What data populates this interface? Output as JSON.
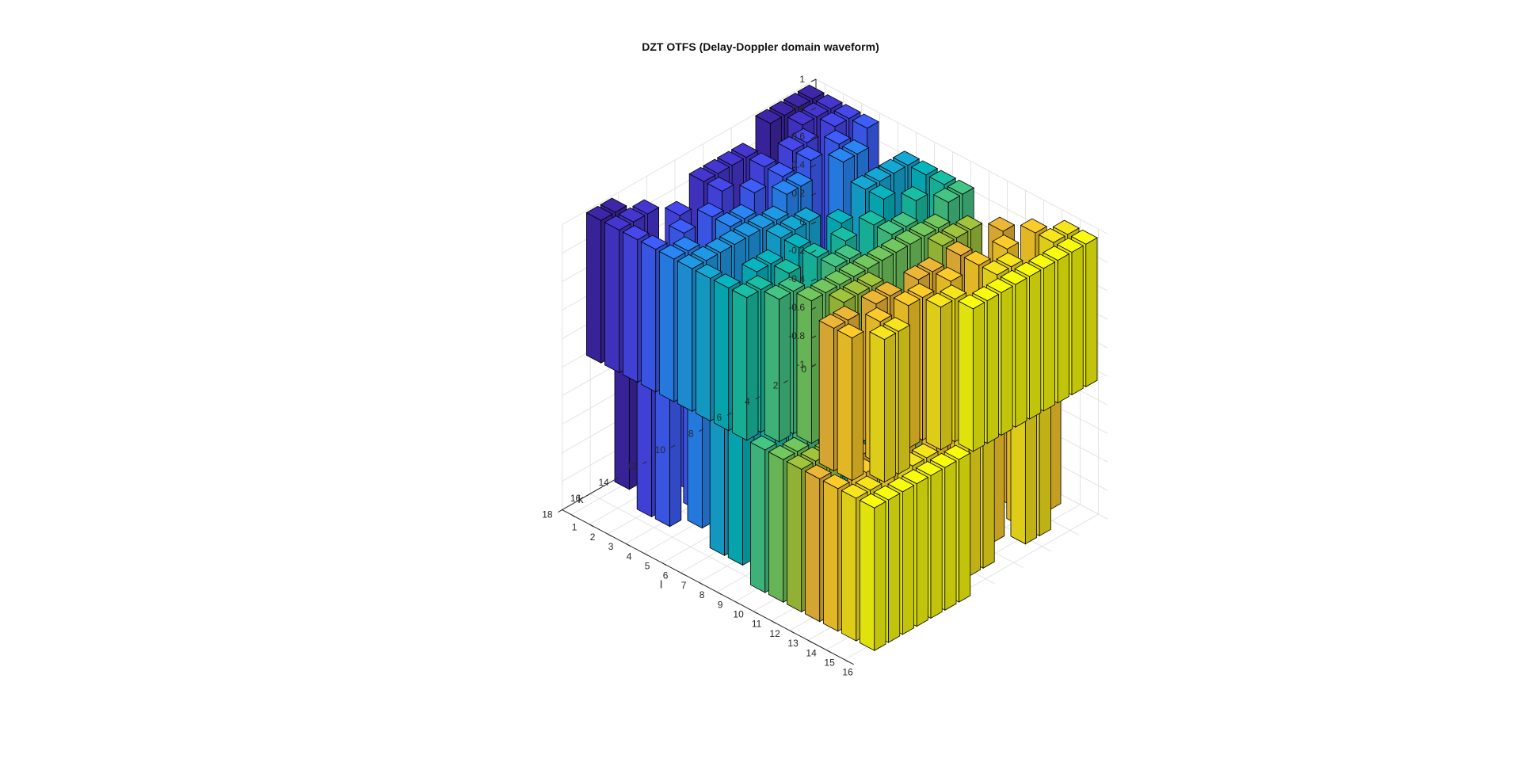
{
  "chart_data": {
    "type": "bar3",
    "title": "DZT OTFS (Delay-Doppler domain waveform)",
    "xlabel": "l",
    "ylabel": "k",
    "zlabel": "",
    "xlim": [
      0.5,
      16.5
    ],
    "ylim": [
      0,
      18
    ],
    "zlim": [
      -1,
      1
    ],
    "x_ticks": [
      "1",
      "2",
      "3",
      "4",
      "5",
      "6",
      "7",
      "8",
      "9",
      "10",
      "11",
      "12",
      "13",
      "14",
      "15",
      "16"
    ],
    "y_ticks": [
      "0",
      "2",
      "4",
      "6",
      "8",
      "10",
      "12",
      "14",
      "16",
      "18"
    ],
    "z_ticks": [
      "-1",
      "-0.8",
      "-0.6",
      "-0.4",
      "-0.2",
      "0",
      "0.2",
      "0.4",
      "0.6",
      "0.8",
      "1"
    ],
    "grid": true,
    "colormap": "parula",
    "series_colors": [
      "#3e26a8",
      "#4636d0",
      "#4748ec",
      "#3f5dfa",
      "#3172fe",
      "#2a86f4",
      "#1f99e4",
      "#15a8d5",
      "#06b5c0",
      "#19bfa4",
      "#44c584",
      "#72c85f",
      "#a0c43c",
      "#c7bd2f",
      "#ecb737",
      "#fbcb2a",
      "#f6e41c",
      "#f9fb0e"
    ],
    "note_values": "bar heights (z) are the magnitudes of the delay-Doppler waveform samples; columns k = 1..16 across l = 1..16",
    "z_matrix_description": "values alternate between +1 and -1 levels following the DZT kernel pattern"
  }
}
